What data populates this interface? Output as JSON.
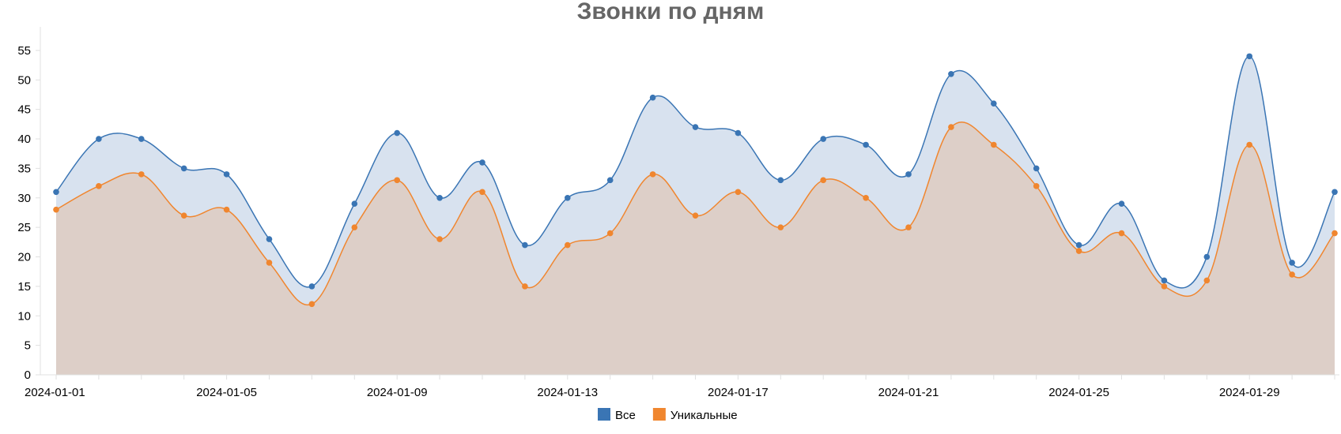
{
  "chart_data": {
    "type": "area",
    "title": "Звонки по дням",
    "xlabel": "",
    "ylabel": "",
    "ylim": [
      0,
      59
    ],
    "yticks": [
      0,
      5,
      10,
      15,
      20,
      25,
      30,
      35,
      40,
      45,
      50,
      55
    ],
    "x": [
      "2024-01-01",
      "2024-01-02",
      "2024-01-03",
      "2024-01-04",
      "2024-01-05",
      "2024-01-06",
      "2024-01-07",
      "2024-01-08",
      "2024-01-09",
      "2024-01-10",
      "2024-01-11",
      "2024-01-12",
      "2024-01-13",
      "2024-01-14",
      "2024-01-15",
      "2024-01-16",
      "2024-01-17",
      "2024-01-18",
      "2024-01-19",
      "2024-01-20",
      "2024-01-21",
      "2024-01-22",
      "2024-01-23",
      "2024-01-24",
      "2024-01-25",
      "2024-01-26",
      "2024-01-27",
      "2024-01-28",
      "2024-01-29",
      "2024-01-30",
      "2024-01-31"
    ],
    "xtick_labels": [
      "2024-01-01",
      "2024-01-05",
      "2024-01-09",
      "2024-01-13",
      "2024-01-17",
      "2024-01-21",
      "2024-01-25",
      "2024-01-29"
    ],
    "grid": false,
    "legend_position": "bottom-center",
    "series": [
      {
        "name": "Все",
        "color": "#3a75b4",
        "fill": "#d8e2ef",
        "values": [
          31,
          40,
          40,
          35,
          34,
          23,
          15,
          29,
          41,
          30,
          36,
          22,
          30,
          33,
          47,
          42,
          41,
          33,
          40,
          39,
          34,
          51,
          46,
          35,
          22,
          29,
          16,
          20,
          54,
          19,
          31
        ]
      },
      {
        "name": "Уникальные",
        "color": "#f0862f",
        "fill": "#ddcfc8",
        "values": [
          28,
          32,
          34,
          27,
          28,
          19,
          12,
          25,
          33,
          23,
          31,
          15,
          22,
          24,
          34,
          27,
          31,
          25,
          33,
          30,
          25,
          42,
          39,
          32,
          21,
          24,
          15,
          16,
          39,
          17,
          24
        ]
      }
    ]
  }
}
